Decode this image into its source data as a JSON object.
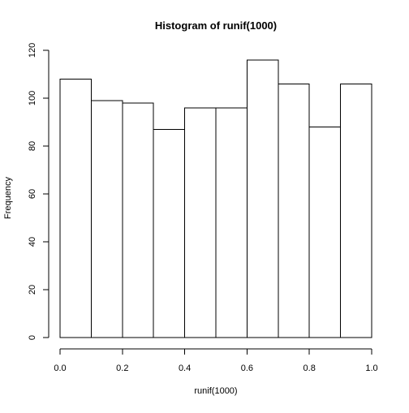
{
  "chart_data": {
    "type": "bar",
    "title": "Histogram of runif(1000)",
    "xlabel": "runif(1000)",
    "ylabel": "Frequency",
    "bins": [
      {
        "start": 0.0,
        "end": 0.1,
        "value": 108
      },
      {
        "start": 0.1,
        "end": 0.2,
        "value": 99
      },
      {
        "start": 0.2,
        "end": 0.3,
        "value": 98
      },
      {
        "start": 0.3,
        "end": 0.4,
        "value": 87
      },
      {
        "start": 0.4,
        "end": 0.5,
        "value": 96
      },
      {
        "start": 0.5,
        "end": 0.6,
        "value": 96
      },
      {
        "start": 0.6,
        "end": 0.7,
        "value": 116
      },
      {
        "start": 0.7,
        "end": 0.8,
        "value": 106
      },
      {
        "start": 0.8,
        "end": 0.9,
        "value": 88
      },
      {
        "start": 0.9,
        "end": 1.0,
        "value": 106
      }
    ],
    "xlim": [
      0,
      1
    ],
    "ylim": [
      0,
      120
    ],
    "x_ticks": [
      0.0,
      0.2,
      0.4,
      0.6,
      0.8,
      1.0
    ],
    "x_tick_labels": [
      "0.0",
      "0.2",
      "0.4",
      "0.6",
      "0.8",
      "1.0"
    ],
    "y_ticks": [
      0,
      20,
      40,
      60,
      80,
      100,
      120
    ],
    "y_tick_labels": [
      "0",
      "20",
      "40",
      "60",
      "80",
      "100",
      "120"
    ],
    "grid": false,
    "legend": "none",
    "colors": {
      "bar_fill": "#ffffff",
      "bar_stroke": "#000000",
      "axis": "#000000"
    }
  }
}
